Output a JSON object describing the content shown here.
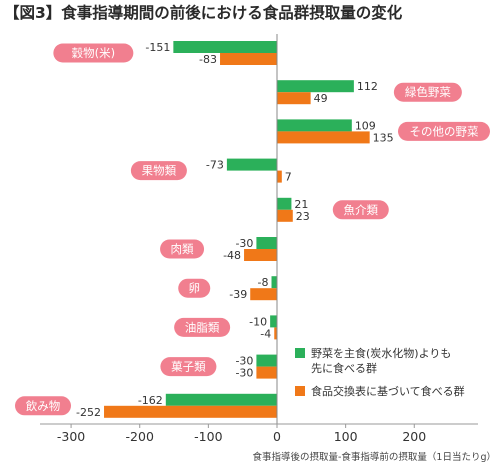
{
  "chart_data": {
    "type": "bar",
    "orientation": "horizontal",
    "title": "【図3】食事指導期間の前後における食品群摂取量の変化",
    "xlabel": "食事指導後の摂取量-食事指導前の摂取量（1日当たりg）",
    "ylabel": "",
    "xlim": [
      -350,
      300
    ],
    "x_ticks": [
      -300,
      -200,
      -100,
      0,
      100,
      200
    ],
    "grid": false,
    "legend_position": "bottom-right",
    "categories": [
      "穀物(米)",
      "緑色野菜",
      "その他の野菜",
      "果物類",
      "魚介類",
      "肉類",
      "卵",
      "油脂類",
      "菓子類",
      "飲み物"
    ],
    "series": [
      {
        "name": "野菜を主食(炭水化物)よりも先に食べる群",
        "color": "#2bb05a",
        "values": [
          -151,
          112,
          109,
          -73,
          21,
          -30,
          -8,
          -10,
          -30,
          -162
        ]
      },
      {
        "name": "食品交換表に基づいて食べる群",
        "color": "#f07818",
        "values": [
          -83,
          49,
          135,
          7,
          23,
          -48,
          -39,
          -4,
          -30,
          -252
        ]
      }
    ]
  },
  "colors": {
    "label_pill": "#f17f8f",
    "axis": "#888888"
  },
  "legend_lines": [
    [
      "野菜を主食(炭水化物)よりも",
      "先に食べる群"
    ],
    [
      "食品交換表に基づいて食べる群"
    ]
  ]
}
